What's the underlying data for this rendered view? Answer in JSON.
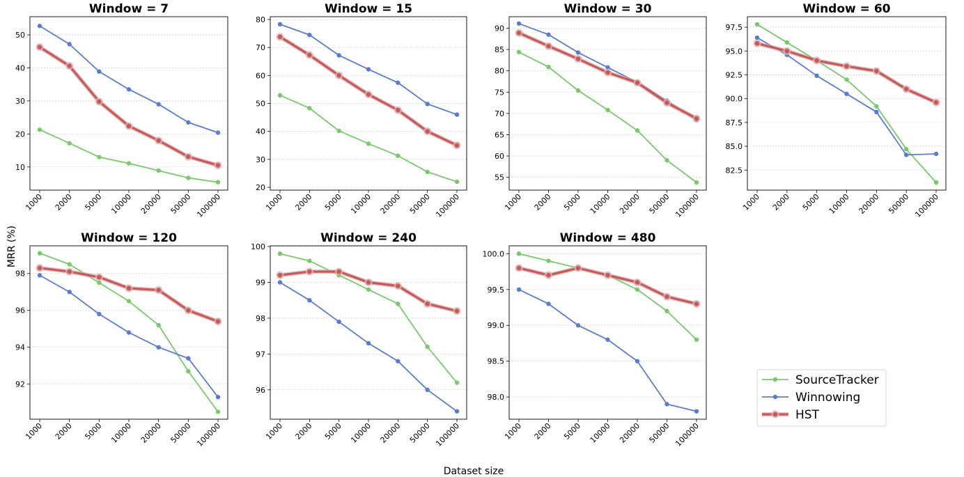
{
  "figure": {
    "xlabel": "Dataset size",
    "ylabel": "MRR (%)"
  },
  "legend": {
    "placement": "lower-right",
    "entries": [
      {
        "name": "SourceTracker",
        "color": "#77c96a"
      },
      {
        "name": "Winnowing",
        "color": "#5a7bd2"
      },
      {
        "name": "HST",
        "color": "#c65a5a"
      }
    ]
  },
  "chart_data": [
    {
      "type": "line",
      "title": "Window = 7",
      "categories": [
        "1000",
        "2000",
        "5000",
        "10000",
        "20000",
        "50000",
        "100000"
      ],
      "yticks": [
        "10",
        "20",
        "30",
        "40",
        "50"
      ],
      "ylim": [
        3.0,
        55.5
      ],
      "grid": "y",
      "series": [
        {
          "name": "SourceTracker",
          "values": [
            21.3,
            17.2,
            13.0,
            11.1,
            8.9,
            6.7,
            5.4
          ]
        },
        {
          "name": "Winnowing",
          "values": [
            52.7,
            47.2,
            38.9,
            33.5,
            29.0,
            23.5,
            20.4
          ]
        },
        {
          "name": "HST",
          "values": [
            46.3,
            40.6,
            29.8,
            22.4,
            18.0,
            13.1,
            10.5
          ]
        }
      ]
    },
    {
      "type": "line",
      "title": "Window = 15",
      "categories": [
        "1000",
        "2000",
        "5000",
        "10000",
        "20000",
        "50000",
        "100000"
      ],
      "yticks": [
        "20",
        "30",
        "40",
        "50",
        "60",
        "70",
        "80"
      ],
      "ylim": [
        19.0,
        81.0
      ],
      "grid": "y",
      "series": [
        {
          "name": "SourceTracker",
          "values": [
            52.9,
            48.3,
            40.2,
            35.6,
            31.3,
            25.5,
            22.0
          ]
        },
        {
          "name": "Winnowing",
          "values": [
            78.3,
            74.5,
            67.2,
            62.2,
            57.4,
            49.8,
            46.0
          ]
        },
        {
          "name": "HST",
          "values": [
            73.8,
            67.3,
            60.0,
            53.2,
            47.6,
            40.0,
            35.0
          ]
        }
      ]
    },
    {
      "type": "line",
      "title": "Window = 30",
      "categories": [
        "1000",
        "2000",
        "5000",
        "10000",
        "20000",
        "50000",
        "100000"
      ],
      "yticks": [
        "55",
        "60",
        "65",
        "70",
        "75",
        "80",
        "85",
        "90"
      ],
      "ylim": [
        52.0,
        92.7
      ],
      "grid": "y",
      "series": [
        {
          "name": "SourceTracker",
          "values": [
            84.4,
            80.9,
            75.4,
            70.8,
            66.0,
            59.0,
            53.8
          ]
        },
        {
          "name": "Winnowing",
          "values": [
            91.1,
            88.5,
            84.3,
            80.8,
            77.3,
            73.0,
            68.4
          ]
        },
        {
          "name": "HST",
          "values": [
            88.9,
            85.8,
            82.8,
            79.6,
            77.2,
            72.5,
            68.8
          ]
        }
      ]
    },
    {
      "type": "line",
      "title": "Window = 60",
      "categories": [
        "1000",
        "2000",
        "5000",
        "10000",
        "20000",
        "50000",
        "100000"
      ],
      "yticks": [
        "82.5",
        "85.0",
        "87.5",
        "90.0",
        "92.5",
        "95.0",
        "97.5"
      ],
      "ylim": [
        80.4,
        98.6
      ],
      "grid": "y",
      "series": [
        {
          "name": "SourceTracker",
          "values": [
            97.8,
            95.9,
            94.0,
            92.0,
            89.2,
            84.7,
            81.2
          ]
        },
        {
          "name": "Winnowing",
          "values": [
            96.4,
            94.6,
            92.4,
            90.5,
            88.6,
            84.1,
            84.2
          ]
        },
        {
          "name": "HST",
          "values": [
            95.8,
            95.0,
            94.0,
            93.4,
            92.9,
            91.0,
            89.6
          ]
        }
      ]
    },
    {
      "type": "line",
      "title": "Window = 120",
      "categories": [
        "1000",
        "2000",
        "5000",
        "10000",
        "20000",
        "50000",
        "100000"
      ],
      "yticks": [
        "92",
        "94",
        "96",
        "98"
      ],
      "ylim": [
        90.1,
        99.5
      ],
      "grid": "y",
      "series": [
        {
          "name": "SourceTracker",
          "values": [
            99.1,
            98.5,
            97.5,
            96.5,
            95.2,
            92.7,
            90.5
          ]
        },
        {
          "name": "Winnowing",
          "values": [
            97.9,
            97.0,
            95.8,
            94.8,
            94.0,
            93.4,
            91.3
          ]
        },
        {
          "name": "HST",
          "values": [
            98.3,
            98.1,
            97.8,
            97.2,
            97.1,
            96.0,
            95.4
          ]
        }
      ]
    },
    {
      "type": "line",
      "title": "Window = 240",
      "categories": [
        "1000",
        "2000",
        "5000",
        "10000",
        "20000",
        "50000",
        "100000"
      ],
      "yticks": [
        "96",
        "97",
        "98",
        "99",
        "100"
      ],
      "ylim": [
        95.18,
        100.02
      ],
      "grid": "y",
      "series": [
        {
          "name": "SourceTracker",
          "values": [
            99.8,
            99.6,
            99.2,
            98.8,
            98.4,
            97.2,
            96.2
          ]
        },
        {
          "name": "Winnowing",
          "values": [
            99.0,
            98.5,
            97.9,
            97.3,
            96.8,
            96.0,
            95.4
          ]
        },
        {
          "name": "HST",
          "values": [
            99.2,
            99.3,
            99.3,
            99.0,
            98.9,
            98.4,
            98.2
          ]
        }
      ]
    },
    {
      "type": "line",
      "title": "Window = 480",
      "categories": [
        "1000",
        "2000",
        "5000",
        "10000",
        "20000",
        "50000",
        "100000"
      ],
      "yticks": [
        "98.0",
        "98.5",
        "99.0",
        "99.5",
        "100.0"
      ],
      "ylim": [
        97.69,
        100.11
      ],
      "grid": "y",
      "series": [
        {
          "name": "SourceTracker",
          "values": [
            100.0,
            99.9,
            99.8,
            99.7,
            99.5,
            99.2,
            98.8
          ]
        },
        {
          "name": "Winnowing",
          "values": [
            99.5,
            99.3,
            99.0,
            98.8,
            98.5,
            97.9,
            97.8
          ]
        },
        {
          "name": "HST",
          "values": [
            99.8,
            99.7,
            99.8,
            99.7,
            99.6,
            99.4,
            99.3
          ]
        }
      ]
    }
  ]
}
